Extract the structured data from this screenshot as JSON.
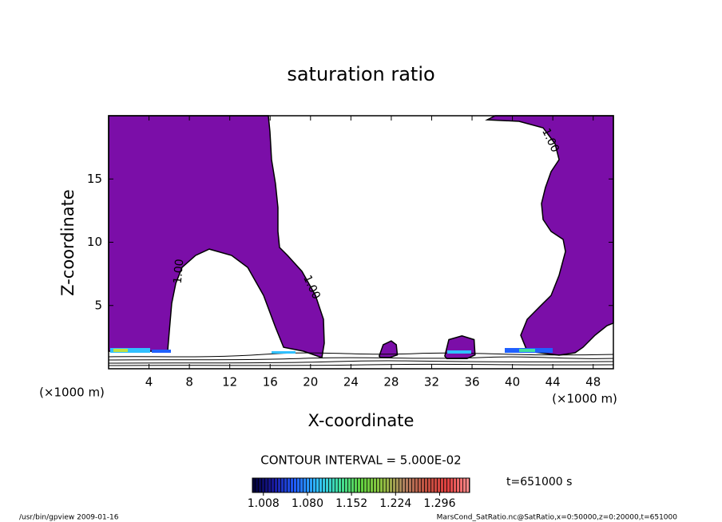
{
  "chart_data": {
    "type": "contour",
    "title": "saturation ratio",
    "xlabel": "X-coordinate",
    "ylabel": "Z-coordinate",
    "x_unit": "(×1000 m)",
    "xlim": [
      0,
      50
    ],
    "ylim": [
      0,
      20
    ],
    "xticks": [
      4,
      8,
      12,
      16,
      20,
      24,
      28,
      32,
      36,
      40,
      44,
      48
    ],
    "yticks": [
      5,
      10,
      15
    ],
    "fill_color": "#7b0ea8",
    "contours": [
      {
        "label": "1.00",
        "x": [
          0,
          15.82,
          15.98,
          16.14,
          16.53,
          16.77,
          16.77,
          16.93,
          17.72,
          19.15,
          20.49,
          21.28,
          21.36,
          21.12,
          19.3,
          17.33,
          16.53,
          15.35,
          13.77,
          12.18,
          9.97,
          8.62,
          7.28,
          6.65,
          6.25,
          6.01,
          5.85,
          0
        ],
        "y": [
          20,
          20,
          18.74,
          16.53,
          14.64,
          12.74,
          10.85,
          9.59,
          8.96,
          7.7,
          5.8,
          3.91,
          2.02,
          0.88,
          1.39,
          1.7,
          3.28,
          5.8,
          8.01,
          8.96,
          9.46,
          8.96,
          8.01,
          6.75,
          5.17,
          2.97,
          1.39,
          1.39
        ]
      },
      {
        "label": "1.00",
        "x": [
          38.29,
          50,
          50,
          49.37,
          48.18,
          46.99,
          46.2,
          44.62,
          41.46,
          40.82,
          41.46,
          42.64,
          43.83,
          44.62,
          45.25,
          45.02,
          43.83,
          43.04,
          42.88,
          43.27,
          43.83,
          44.62,
          44.22,
          43.04,
          40.66,
          37.5
        ],
        "y": [
          20,
          20,
          3.6,
          3.41,
          2.65,
          1.7,
          1.26,
          1.07,
          1.39,
          2.65,
          3.91,
          4.86,
          5.8,
          7.38,
          9.27,
          10.22,
          10.85,
          11.8,
          13.06,
          14.32,
          15.58,
          16.53,
          17.79,
          19.05,
          19.56,
          19.68
        ]
      },
      {
        "label": "1.00",
        "x": [
          26.8,
          27.2,
          28,
          28.5,
          28.6,
          27.9,
          26.9
        ],
        "y": [
          1.0,
          1.9,
          2.2,
          1.9,
          1.1,
          0.9,
          0.9
        ]
      },
      {
        "label": "1.00",
        "x": [
          33.3,
          33.7,
          35,
          36.2,
          36.3,
          35.5,
          33.5
        ],
        "y": [
          1.0,
          2.3,
          2.6,
          2.3,
          1.1,
          0.8,
          0.8
        ]
      }
    ],
    "contour_interval": "CONTOUR INTERVAL = 5.000E-02",
    "colormap": [
      "#000033",
      "#1a1aa0",
      "#2060ff",
      "#30c0ff",
      "#40e0a0",
      "#60d040",
      "#90c040",
      "#b08060",
      "#c05040",
      "#e04040",
      "#ff9090"
    ],
    "clim": [
      0.99,
      1.345
    ],
    "cticks": [
      1.008,
      {
        "value": 1.08,
        "label": "1.080"
      },
      1.152,
      1.224,
      1.296
    ],
    "time": "t=651000 s",
    "footer_left": "/usr/bin/gpview  2009-01-16",
    "footer_right": "MarsCond_SatRatio.nc@SatRatio,x=0:50000,z=0:20000,t=651000"
  }
}
